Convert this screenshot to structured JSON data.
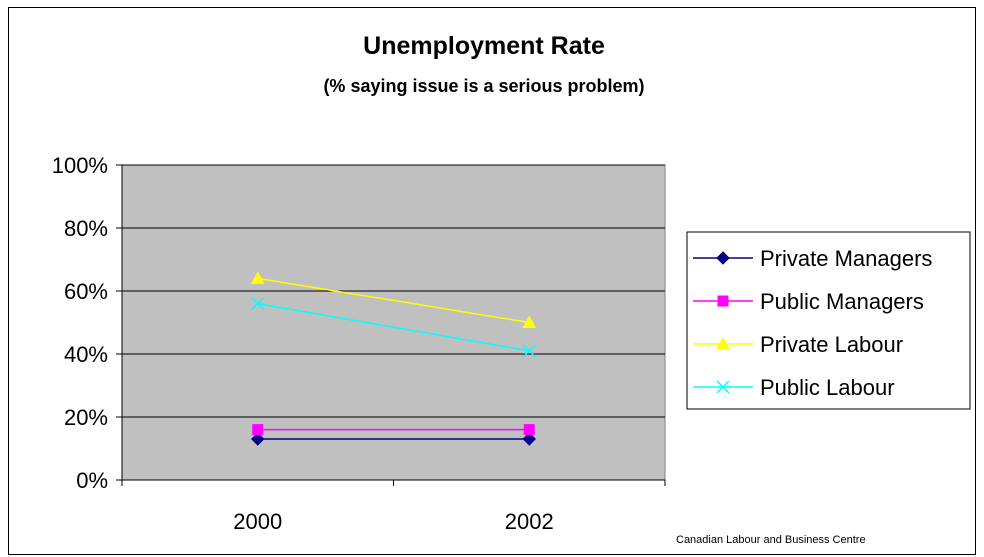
{
  "chart_data": {
    "type": "line",
    "title": "Unemployment Rate",
    "subtitle": "(% saying issue is a serious problem)",
    "categories": [
      "2000",
      "2002"
    ],
    "y_ticks": [
      "0%",
      "20%",
      "40%",
      "60%",
      "80%",
      "100%"
    ],
    "ylim": [
      0,
      100
    ],
    "y_unit": "%",
    "grid": true,
    "legend_position": "right",
    "series": [
      {
        "name": "Private Managers",
        "values": [
          13,
          13
        ],
        "color": "#000080",
        "marker": "diamond"
      },
      {
        "name": "Public Managers",
        "values": [
          16,
          16
        ],
        "color": "#ff00ff",
        "marker": "square"
      },
      {
        "name": "Private Labour",
        "values": [
          64,
          50
        ],
        "color": "#ffff00",
        "marker": "triangle"
      },
      {
        "name": "Public Labour",
        "values": [
          56,
          41
        ],
        "color": "#00ffff",
        "marker": "x"
      }
    ],
    "plot_background": "#c0c0c0",
    "source": "Canadian Labour and Business Centre"
  }
}
